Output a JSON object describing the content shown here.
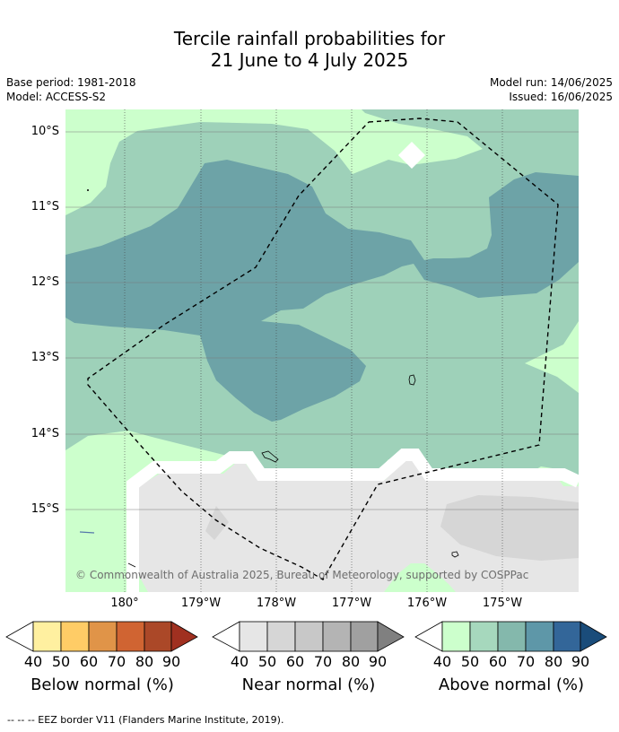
{
  "title": {
    "line1": "Tercile rainfall probabilities for",
    "line2": "21 June to 4 July 2025"
  },
  "meta": {
    "base_period": "Base period: 1981-2018",
    "model": "Model: ACCESS-S2",
    "model_run": "Model run: 14/06/2025",
    "issued": "Issued: 16/06/2025"
  },
  "map": {
    "lat_labels": [
      "10°S",
      "11°S",
      "12°S",
      "13°S",
      "14°S",
      "15°S"
    ],
    "lon_labels": [
      "180°",
      "179°W",
      "178°W",
      "177°W",
      "176°W",
      "175°W"
    ],
    "copyright": "© Commonwealth of Australia 2025, Bureau of Meteorology, supported by COSPPac",
    "colors": {
      "above_40": "#ccffcc",
      "above_50": "#9ed1b9",
      "above_60": "#6da3a7",
      "near_40": "#e6e6e6",
      "near_50": "#d6d6d6",
      "white": "#ffffff"
    }
  },
  "colorbars": [
    {
      "label": "Below normal (%)",
      "ticks": [
        "40",
        "50",
        "60",
        "70",
        "80",
        "90"
      ],
      "colors": [
        "#fff0a0",
        "#ffcc66",
        "#e09448",
        "#d06432",
        "#ab4828",
        "#a03020"
      ]
    },
    {
      "label": "Near normal (%)",
      "ticks": [
        "40",
        "50",
        "60",
        "70",
        "80",
        "90"
      ],
      "colors": [
        "#e6e6e6",
        "#d6d6d6",
        "#c8c8c8",
        "#b4b4b4",
        "#a0a0a0",
        "#808080"
      ]
    },
    {
      "label": "Above normal (%)",
      "ticks": [
        "40",
        "50",
        "60",
        "70",
        "80",
        "90"
      ],
      "colors": [
        "#ccffcc",
        "#a6d8bd",
        "#84b8ac",
        "#5e97a8",
        "#336699",
        "#1a4c7a"
      ]
    }
  ],
  "footer": "--  --  -- EEZ border V11 (Flanders Marine Institute, 2019)."
}
